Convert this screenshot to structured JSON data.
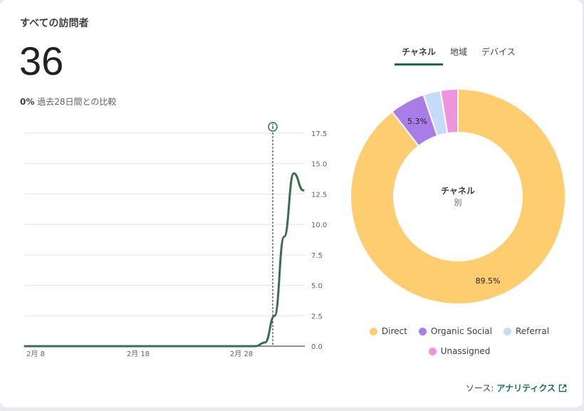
{
  "card": {
    "title": "すべての訪問者",
    "value": "36",
    "compare_pct": "0%",
    "compare_text": "過去28日間との比較"
  },
  "tabs": [
    "チャネル",
    "地域",
    "デバイス"
  ],
  "line_chart": {
    "chart_data": {
      "type": "line",
      "x_ticks": [
        "2月 8",
        "2月 18",
        "2月 28"
      ],
      "y_ticks": [
        "17.5",
        "15.0",
        "12.5",
        "10.0",
        "7.5",
        "5.0",
        "2.5",
        "0.0"
      ],
      "ylim": [
        0,
        17.5
      ],
      "series": [
        {
          "values": [
            0,
            0,
            0,
            0,
            0,
            0,
            0,
            0,
            0,
            0,
            0,
            0,
            0,
            0,
            0,
            0,
            0,
            0,
            0,
            0,
            0,
            0,
            0,
            0,
            0,
            0.3,
            2.5,
            9.0,
            14.2,
            12.8
          ]
        }
      ],
      "line_color": "#3b6e4f"
    }
  },
  "donut": {
    "center_title": "チャネル",
    "center_sub": "別",
    "chart_data": {
      "type": "pie",
      "labels": [
        "Direct",
        "Organic Social",
        "Referral",
        "Unassigned"
      ],
      "values": [
        89.5,
        5.3,
        2.6,
        2.6
      ],
      "data_labels": [
        "89.5%",
        "5.3%",
        "",
        ""
      ],
      "colors": [
        "#fdcd6f",
        "#a87de8",
        "#c6dafc",
        "#f093df"
      ]
    }
  },
  "legend": [
    {
      "label": "Direct",
      "color": "#fdcd6f"
    },
    {
      "label": "Organic Social",
      "color": "#a87de8"
    },
    {
      "label": "Referral",
      "color": "#c6dafc"
    },
    {
      "label": "Unassigned",
      "color": "#f093df"
    }
  ],
  "source": {
    "prefix": "ソース:",
    "link": "アナリティクス"
  },
  "icons": {
    "info": "info-icon",
    "external": "open-in-new-icon"
  }
}
